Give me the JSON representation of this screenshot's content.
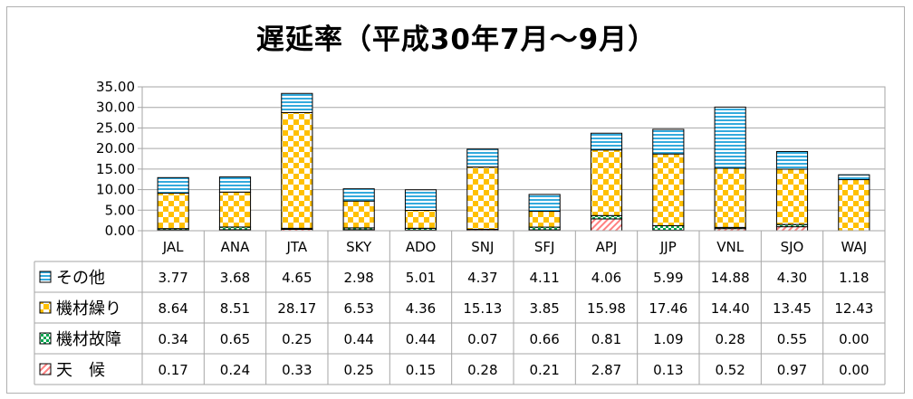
{
  "chart_data": {
    "type": "bar",
    "stacked": true,
    "title": "遅延率（平成30年7月～9月）",
    "categories": [
      "JAL",
      "ANA",
      "JTA",
      "SKY",
      "ADO",
      "SNJ",
      "SFJ",
      "APJ",
      "JJP",
      "VNL",
      "SJO",
      "WAJ"
    ],
    "ylim": [
      0,
      35
    ],
    "yticks": [
      "0.00",
      "5.00",
      "10.00",
      "15.00",
      "20.00",
      "25.00",
      "30.00",
      "35.00"
    ],
    "grid": true,
    "series": [
      {
        "name": "天　候",
        "key": "weather",
        "color": "#ff8080",
        "values": [
          0.17,
          0.24,
          0.33,
          0.25,
          0.15,
          0.28,
          0.21,
          2.87,
          0.13,
          0.52,
          0.97,
          0.0
        ],
        "labels": [
          "0.17",
          "0.24",
          "0.33",
          "0.25",
          "0.15",
          "0.28",
          "0.21",
          "2.87",
          "0.13",
          "0.52",
          "0.97",
          "0.00"
        ]
      },
      {
        "name": "機材故障",
        "key": "failure",
        "color": "#00a650",
        "values": [
          0.34,
          0.65,
          0.25,
          0.44,
          0.44,
          0.07,
          0.66,
          0.81,
          1.09,
          0.28,
          0.55,
          0.0
        ],
        "labels": [
          "0.34",
          "0.65",
          "0.25",
          "0.44",
          "0.44",
          "0.07",
          "0.66",
          "0.81",
          "1.09",
          "0.28",
          "0.55",
          "0.00"
        ]
      },
      {
        "name": "機材繰り",
        "key": "rotation",
        "color": "#ffc000",
        "values": [
          8.64,
          8.51,
          28.17,
          6.53,
          4.36,
          15.13,
          3.85,
          15.98,
          17.46,
          14.4,
          13.45,
          12.43
        ],
        "labels": [
          "8.64",
          "8.51",
          "28.17",
          "6.53",
          "4.36",
          "15.13",
          "3.85",
          "15.98",
          "17.46",
          "14.40",
          "13.45",
          "12.43"
        ]
      },
      {
        "name": "その他",
        "key": "other",
        "color": "#33aadd",
        "values": [
          3.77,
          3.68,
          4.65,
          2.98,
          5.01,
          4.37,
          4.11,
          4.06,
          5.99,
          14.88,
          4.3,
          1.18
        ],
        "labels": [
          "3.77",
          "3.68",
          "4.65",
          "2.98",
          "5.01",
          "4.37",
          "4.11",
          "4.06",
          "5.99",
          "14.88",
          "4.30",
          "1.18"
        ]
      }
    ],
    "table_row_order": [
      "other",
      "rotation",
      "failure",
      "weather"
    ]
  }
}
